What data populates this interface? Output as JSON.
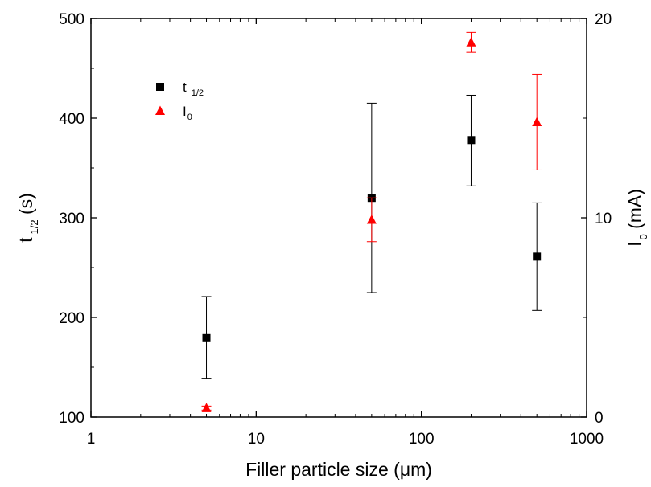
{
  "chart_data": {
    "type": "scatter",
    "x_scale": "log",
    "xlim": [
      1,
      1000
    ],
    "ylim_left": [
      100,
      500
    ],
    "ylim_right": [
      0,
      20
    ],
    "x_ticks": [
      1,
      10,
      100,
      1000
    ],
    "x_tick_labels": [
      "1",
      "10",
      "100",
      "1000"
    ],
    "y_left_ticks": [
      100,
      200,
      300,
      400,
      500
    ],
    "y_left_tick_labels": [
      "100",
      "200",
      "300",
      "400",
      "500"
    ],
    "y_right_ticks": [
      0,
      10,
      20
    ],
    "y_right_tick_labels": [
      "0",
      "10",
      "20"
    ],
    "xlabel": "Filler particle size (μm)",
    "ylabel_left": {
      "main": "t",
      "sub": "1/2",
      "suffix": " (s)"
    },
    "ylabel_right": {
      "main": "I",
      "sub": "0",
      "suffix": " (mA)"
    },
    "legend_position": "top-left",
    "grid": false,
    "series": [
      {
        "name": "t",
        "name_sub": "1/2",
        "axis": "left",
        "marker": "square",
        "color": "#000000",
        "points": [
          {
            "x": 5,
            "y": 180,
            "err_low": 139,
            "err_high": 221
          },
          {
            "x": 50,
            "y": 320,
            "err_low": 225,
            "err_high": 415
          },
          {
            "x": 200,
            "y": 378,
            "err_low": 332,
            "err_high": 423
          },
          {
            "x": 500,
            "y": 261,
            "err_low": 207,
            "err_high": 315
          }
        ]
      },
      {
        "name": "I",
        "name_sub": "0",
        "axis": "right",
        "marker": "triangle",
        "color": "#ff0000",
        "points": [
          {
            "x": 5,
            "y": 0.45,
            "err_low": 0.35,
            "err_high": 0.55
          },
          {
            "x": 50,
            "y": 9.9,
            "err_low": 8.8,
            "err_high": 11.0
          },
          {
            "x": 200,
            "y": 18.8,
            "err_low": 18.3,
            "err_high": 19.3
          },
          {
            "x": 500,
            "y": 14.8,
            "err_low": 12.4,
            "err_high": 17.2
          }
        ]
      }
    ]
  }
}
